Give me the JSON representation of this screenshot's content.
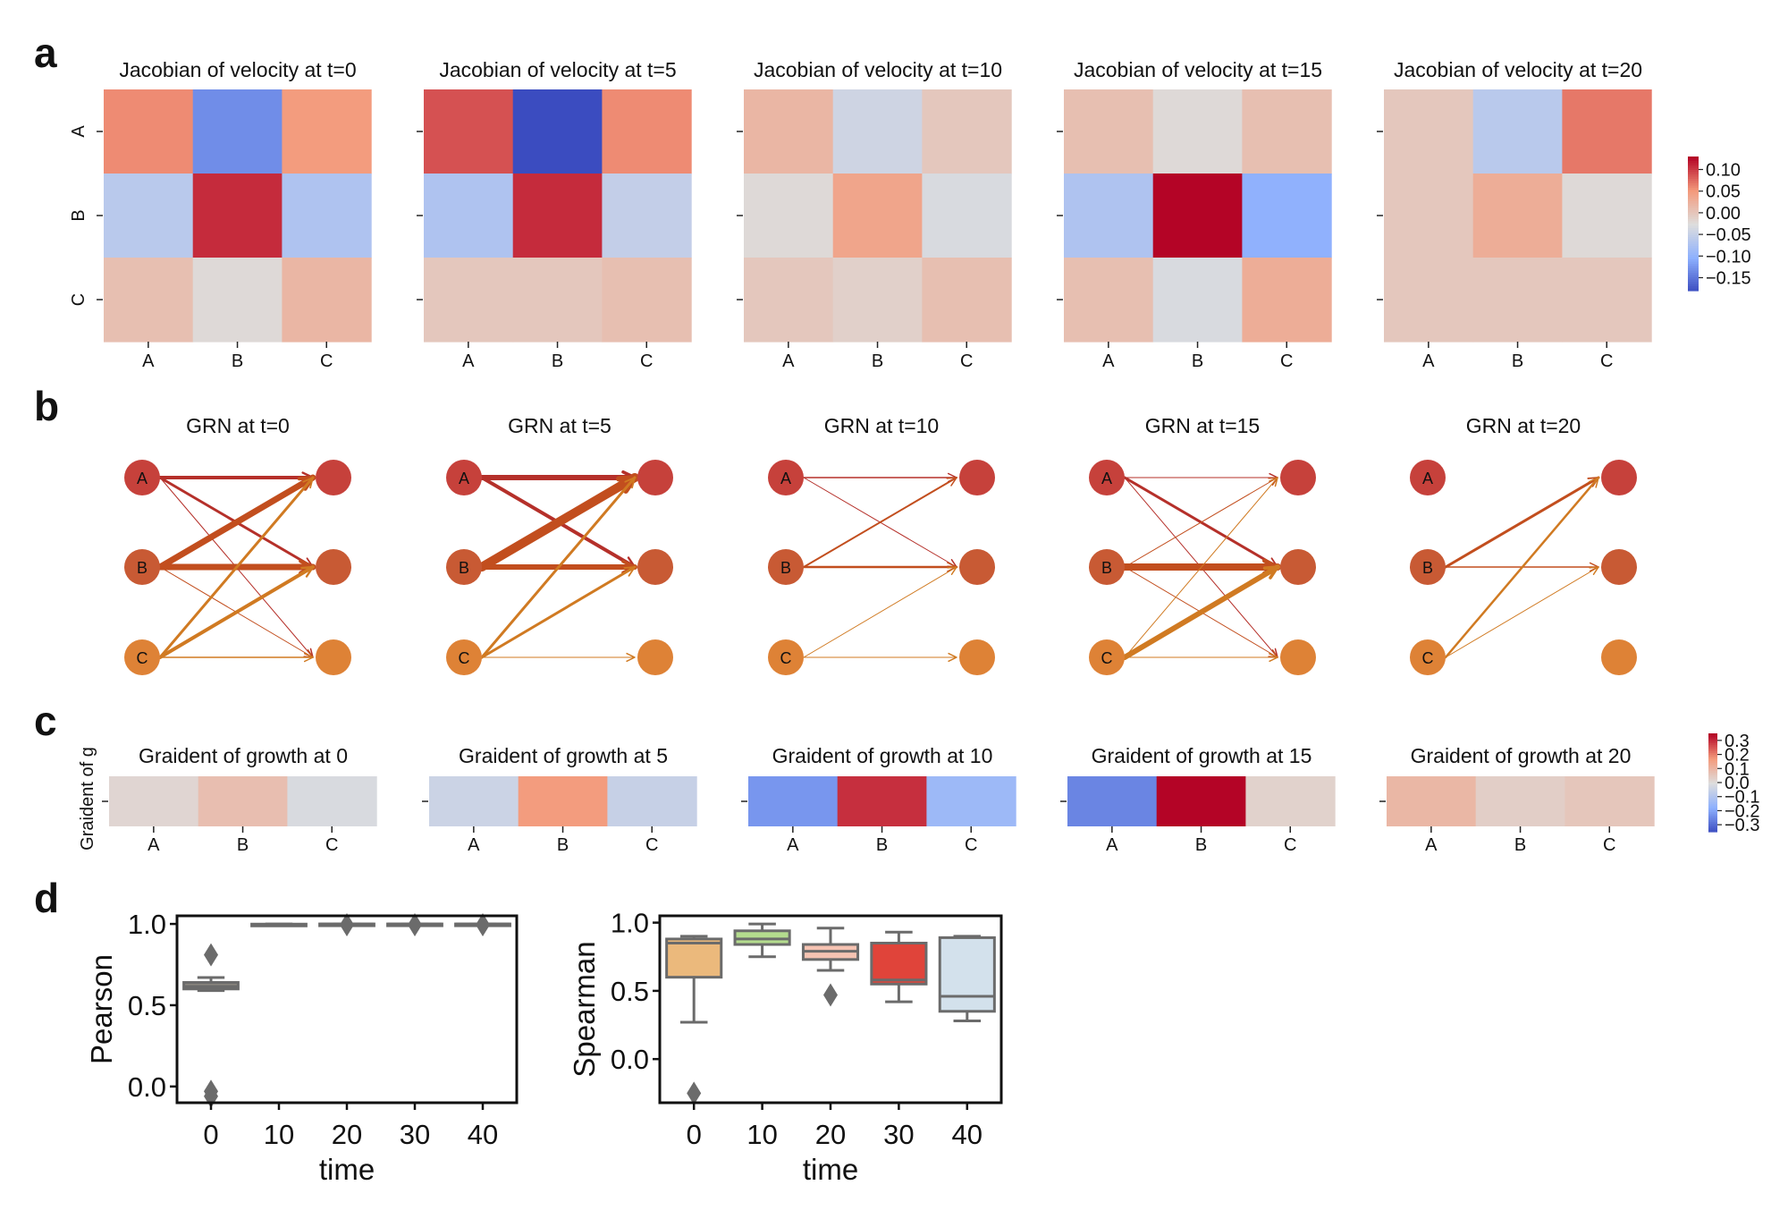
{
  "panels": [
    {
      "letter": "a"
    },
    {
      "letter": "b"
    },
    {
      "letter": "c"
    },
    {
      "letter": "d"
    }
  ],
  "chart_data": [
    {
      "type": "heatmap",
      "panel": "a",
      "rows": [
        "A",
        "B",
        "C"
      ],
      "cols": [
        "A",
        "B",
        "C"
      ],
      "colormap": "coolwarm",
      "vmin": -0.18,
      "vmax": 0.13,
      "colorbar_ticks": [
        "0.10",
        "0.05",
        "0.00",
        "−0.05",
        "−0.10",
        "−0.15"
      ],
      "colorbar_tick_values": [
        0.1,
        0.05,
        0.0,
        -0.05,
        -0.1,
        -0.15
      ],
      "heatmaps": [
        {
          "title": "Jacobian of velocity at t=0",
          "values": [
            [
              0.06,
              -0.13,
              0.05
            ],
            [
              -0.06,
              0.11,
              -0.07
            ],
            [
              0.01,
              -0.02,
              0.02
            ]
          ]
        },
        {
          "title": "Jacobian of velocity at t=5",
          "values": [
            [
              0.09,
              -0.18,
              0.06
            ],
            [
              -0.07,
              0.11,
              -0.05
            ],
            [
              0.0,
              0.0,
              0.01
            ]
          ]
        },
        {
          "title": "Jacobian of velocity at t=10",
          "values": [
            [
              0.02,
              -0.04,
              0.0
            ],
            [
              -0.02,
              0.04,
              -0.03
            ],
            [
              0.0,
              -0.01,
              0.01
            ]
          ]
        },
        {
          "title": "Jacobian of velocity at t=15",
          "values": [
            [
              0.01,
              -0.02,
              0.01
            ],
            [
              -0.07,
              0.13,
              -0.1
            ],
            [
              0.01,
              -0.03,
              0.03
            ]
          ]
        },
        {
          "title": "Jacobian of velocity at t=20",
          "values": [
            [
              0.0,
              -0.06,
              0.07
            ],
            [
              0.0,
              0.03,
              -0.02
            ],
            [
              0.0,
              0.0,
              0.0
            ]
          ]
        }
      ]
    },
    {
      "type": "network",
      "panel": "b",
      "nodes": [
        "A",
        "B",
        "C"
      ],
      "node_colors": {
        "A": "#c6413b",
        "B": "#c85a34",
        "C": "#de8236"
      },
      "graphs": [
        {
          "title": "GRN at t=0",
          "edges": [
            {
              "from": "A",
              "to": "A",
              "w": 4
            },
            {
              "from": "A",
              "to": "B",
              "w": 3
            },
            {
              "from": "A",
              "to": "C",
              "w": 1
            },
            {
              "from": "B",
              "to": "A",
              "w": 7
            },
            {
              "from": "B",
              "to": "B",
              "w": 7
            },
            {
              "from": "B",
              "to": "C",
              "w": 1
            },
            {
              "from": "C",
              "to": "A",
              "w": 3
            },
            {
              "from": "C",
              "to": "B",
              "w": 4
            },
            {
              "from": "C",
              "to": "C",
              "w": 1.5
            }
          ]
        },
        {
          "title": "GRN at t=5",
          "edges": [
            {
              "from": "A",
              "to": "A",
              "w": 6
            },
            {
              "from": "A",
              "to": "B",
              "w": 4
            },
            {
              "from": "B",
              "to": "A",
              "w": 10
            },
            {
              "from": "B",
              "to": "B",
              "w": 6
            },
            {
              "from": "C",
              "to": "A",
              "w": 3
            },
            {
              "from": "C",
              "to": "B",
              "w": 3
            },
            {
              "from": "C",
              "to": "C",
              "w": 1
            }
          ]
        },
        {
          "title": "GRN at t=10",
          "edges": [
            {
              "from": "A",
              "to": "A",
              "w": 1.5
            },
            {
              "from": "A",
              "to": "B",
              "w": 1
            },
            {
              "from": "B",
              "to": "A",
              "w": 2
            },
            {
              "from": "B",
              "to": "B",
              "w": 2.5
            },
            {
              "from": "C",
              "to": "B",
              "w": 1
            },
            {
              "from": "C",
              "to": "C",
              "w": 1
            }
          ]
        },
        {
          "title": "GRN at t=15",
          "edges": [
            {
              "from": "A",
              "to": "A",
              "w": 1
            },
            {
              "from": "A",
              "to": "B",
              "w": 3
            },
            {
              "from": "A",
              "to": "C",
              "w": 1
            },
            {
              "from": "B",
              "to": "A",
              "w": 1
            },
            {
              "from": "B",
              "to": "B",
              "w": 8
            },
            {
              "from": "B",
              "to": "C",
              "w": 1
            },
            {
              "from": "C",
              "to": "A",
              "w": 1
            },
            {
              "from": "C",
              "to": "B",
              "w": 6
            },
            {
              "from": "C",
              "to": "C",
              "w": 1
            }
          ]
        },
        {
          "title": "GRN at t=20",
          "edges": [
            {
              "from": "B",
              "to": "A",
              "w": 3
            },
            {
              "from": "B",
              "to": "B",
              "w": 1.5
            },
            {
              "from": "C",
              "to": "A",
              "w": 2.5
            },
            {
              "from": "C",
              "to": "B",
              "w": 1
            }
          ]
        }
      ]
    },
    {
      "type": "heatmap",
      "panel": "c",
      "ylabel": "Graident of g",
      "cols": [
        "A",
        "B",
        "C"
      ],
      "colormap": "coolwarm",
      "vmin": -0.35,
      "vmax": 0.35,
      "colorbar_ticks": [
        "0.3",
        "0.2",
        "0.1",
        "0.0",
        "−0.1",
        "−0.2",
        "−0.3"
      ],
      "colorbar_tick_values": [
        0.3,
        0.2,
        0.1,
        0.0,
        -0.1,
        -0.2,
        -0.3
      ],
      "heatmaps": [
        {
          "title": "Graident of growth at 0",
          "values": [
            0.02,
            0.08,
            -0.01
          ]
        },
        {
          "title": "Graident of growth at 5",
          "values": [
            -0.04,
            0.17,
            -0.05
          ]
        },
        {
          "title": "Graident of growth at 10",
          "values": [
            -0.22,
            0.3,
            -0.14
          ]
        },
        {
          "title": "Graident of growth at 15",
          "values": [
            -0.25,
            0.35,
            0.03
          ]
        },
        {
          "title": "Graident of growth at 20",
          "values": [
            0.1,
            0.04,
            0.06
          ]
        }
      ]
    },
    {
      "type": "box",
      "panel": "d",
      "xlabel": "time",
      "ylabel": "Pearson",
      "categories": [
        "0",
        "10",
        "20",
        "30",
        "40"
      ],
      "ylim": [
        -0.1,
        1.05
      ],
      "yticks": [
        "0.0",
        "0.5",
        "1.0"
      ],
      "ytick_values": [
        0.0,
        0.5,
        1.0
      ],
      "boxes": [
        {
          "q1": 0.6,
          "median": 0.615,
          "q3": 0.64,
          "whislo": 0.59,
          "whishi": 0.67,
          "fliers": [
            0.81,
            -0.03,
            -0.06
          ],
          "color": "#8a857e"
        },
        {
          "q1": 0.995,
          "median": 0.997,
          "q3": 0.999,
          "whislo": 0.99,
          "whishi": 1.0,
          "fliers": [],
          "color": "#b6c7a7"
        },
        {
          "q1": 1.0,
          "median": 1.0,
          "q3": 1.0,
          "whislo": 1.0,
          "whishi": 1.0,
          "fliers": [
            0.995
          ],
          "color": "#d2b5a8"
        },
        {
          "q1": 1.0,
          "median": 1.0,
          "q3": 1.0,
          "whislo": 1.0,
          "whishi": 1.0,
          "fliers": [
            0.995
          ],
          "color": "#c98a80"
        },
        {
          "q1": 1.0,
          "median": 1.0,
          "q3": 1.0,
          "whislo": 1.0,
          "whishi": 1.0,
          "fliers": [
            0.995
          ],
          "color": "#b8c5cf"
        }
      ]
    },
    {
      "type": "box",
      "panel": "d",
      "xlabel": "time",
      "ylabel": "Spearman",
      "categories": [
        "0",
        "10",
        "20",
        "30",
        "40"
      ],
      "ylim": [
        -0.32,
        1.05
      ],
      "yticks": [
        "0.0",
        "0.5",
        "1.0"
      ],
      "ytick_values": [
        0.0,
        0.5,
        1.0
      ],
      "boxes": [
        {
          "q1": 0.6,
          "median": 0.85,
          "q3": 0.88,
          "whislo": 0.27,
          "whishi": 0.9,
          "fliers": [
            -0.25
          ],
          "color": "#ebb97c"
        },
        {
          "q1": 0.84,
          "median": 0.88,
          "q3": 0.94,
          "whislo": 0.75,
          "whishi": 0.99,
          "fliers": [],
          "color": "#b4dc8e"
        },
        {
          "q1": 0.73,
          "median": 0.79,
          "q3": 0.84,
          "whislo": 0.65,
          "whishi": 0.96,
          "fliers": [
            0.47
          ],
          "color": "#f6c3b2"
        },
        {
          "q1": 0.55,
          "median": 0.58,
          "q3": 0.85,
          "whislo": 0.42,
          "whishi": 0.93,
          "fliers": [],
          "color": "#e0443a"
        },
        {
          "q1": 0.35,
          "median": 0.46,
          "q3": 0.89,
          "whislo": 0.28,
          "whishi": 0.9,
          "fliers": [],
          "color": "#d3e1ec"
        }
      ]
    }
  ]
}
